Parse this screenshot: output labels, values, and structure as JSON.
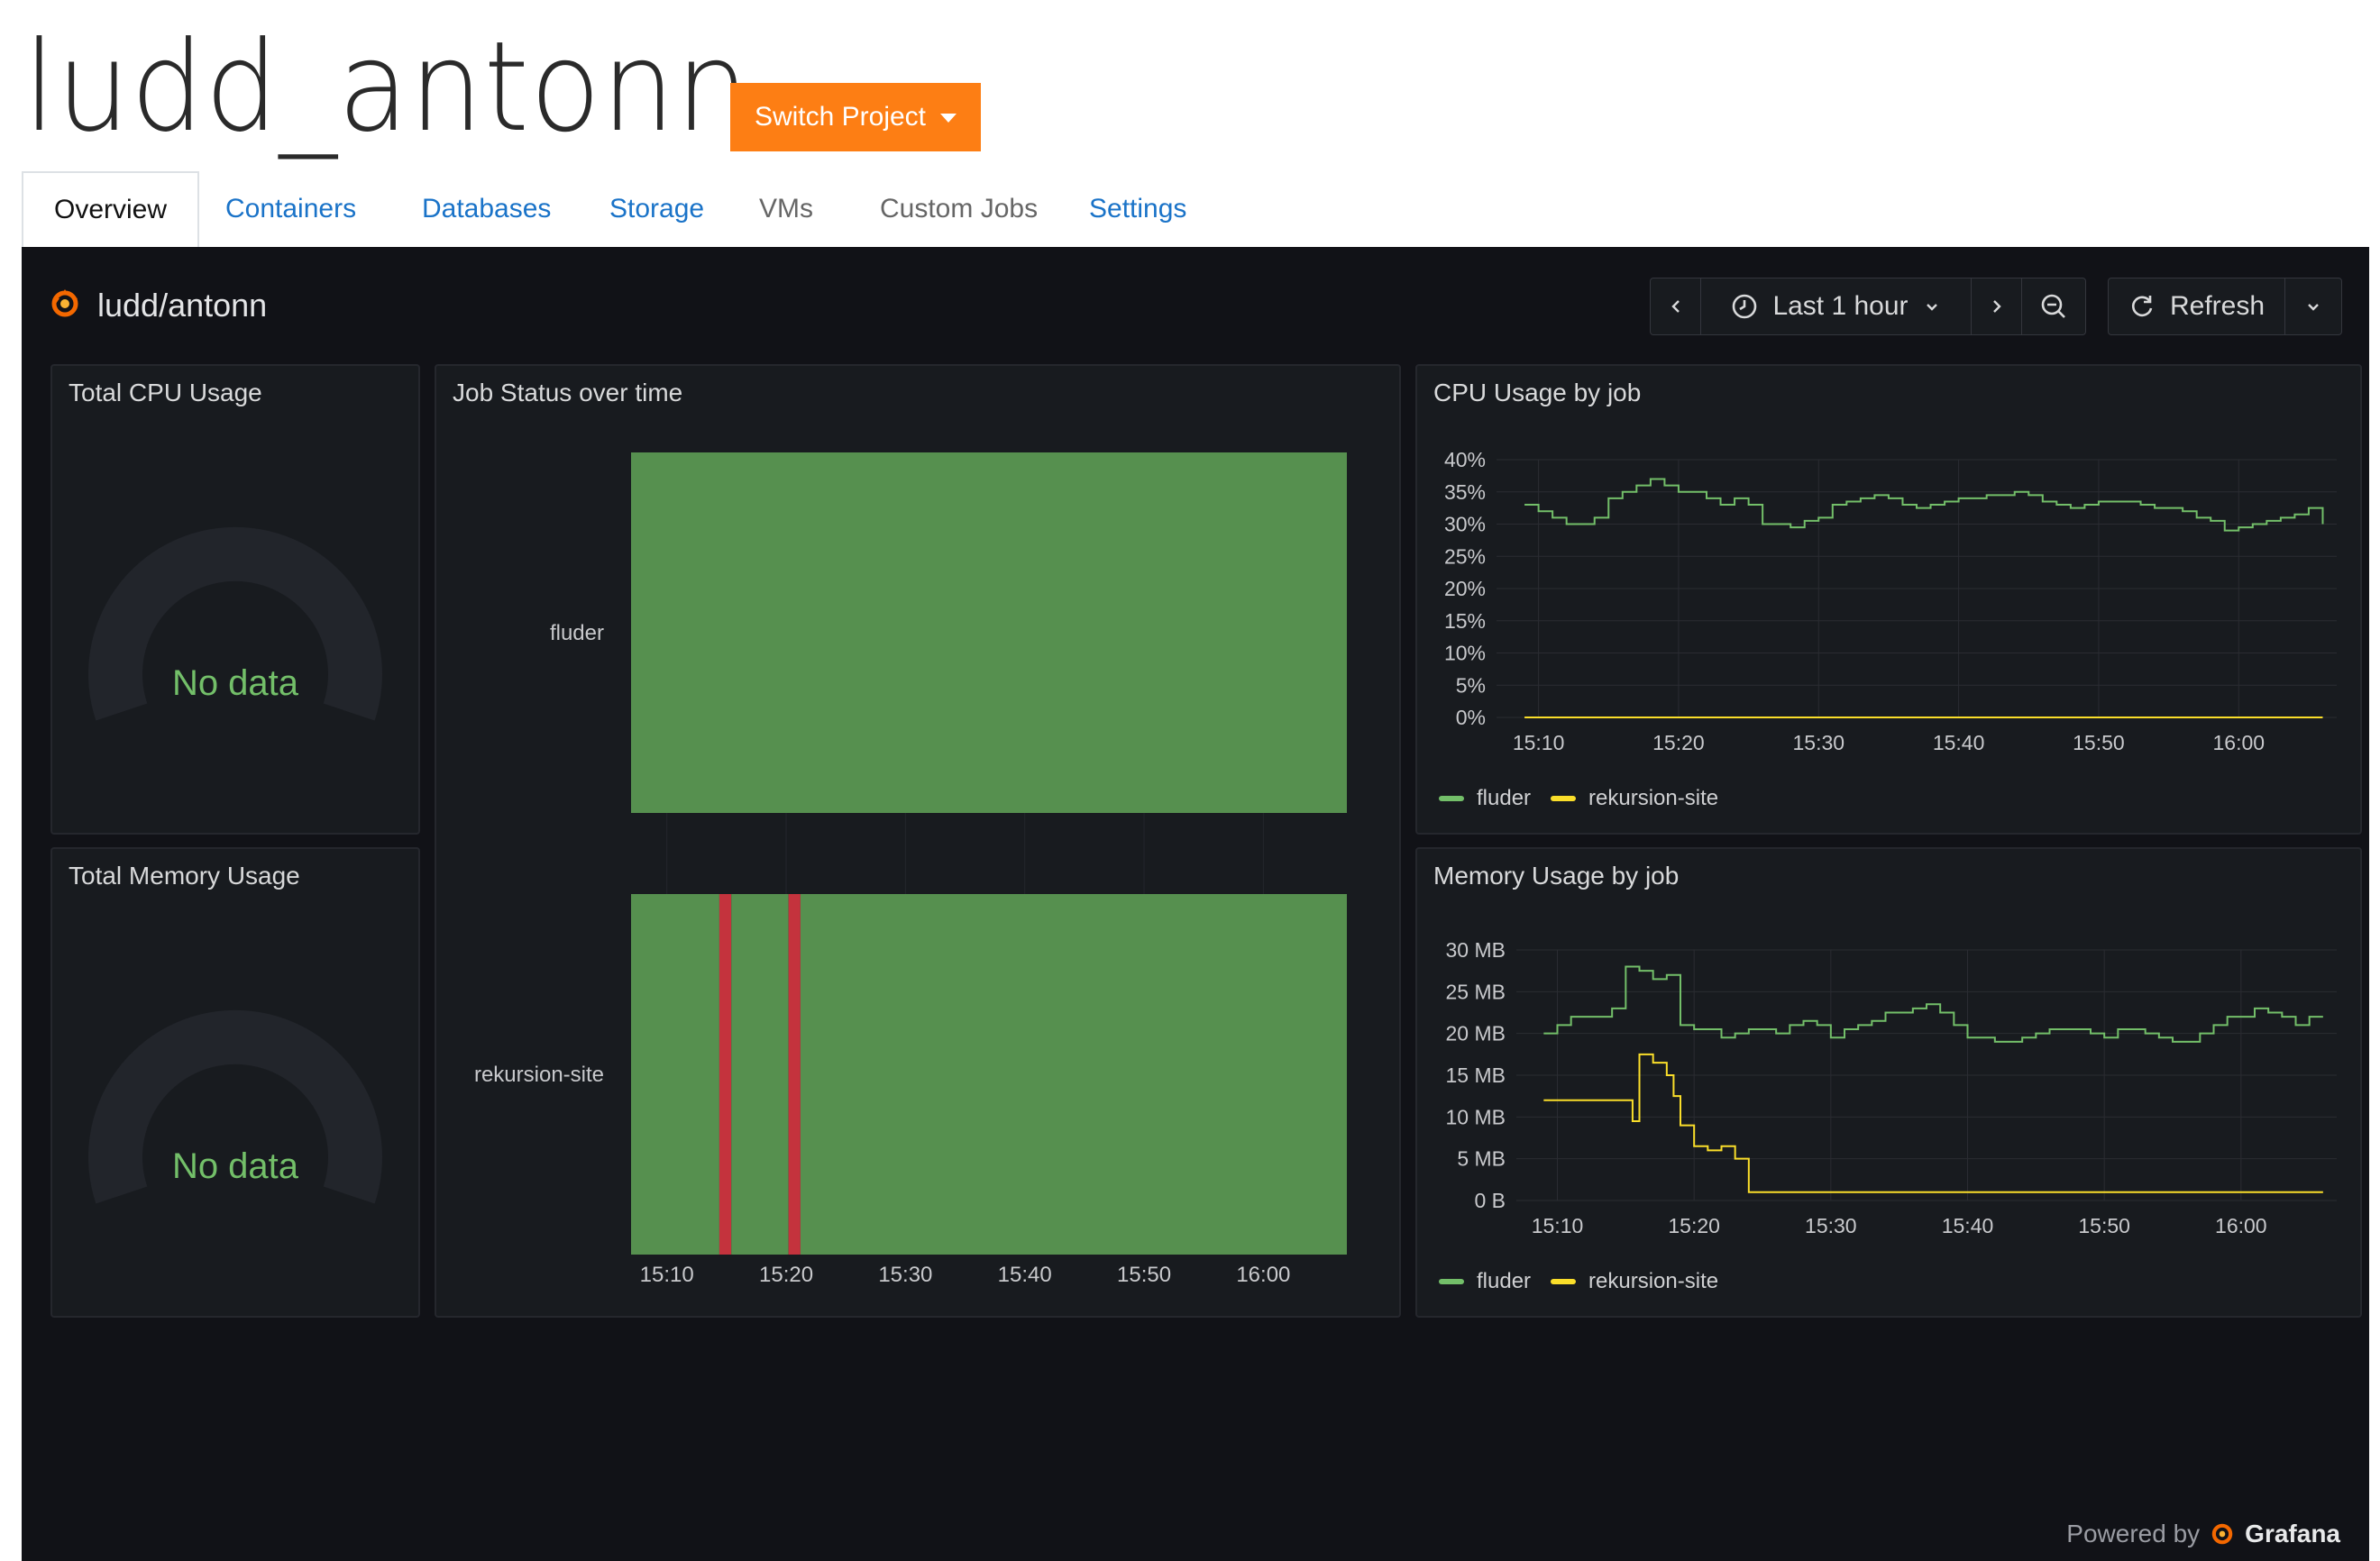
{
  "header": {
    "project_name": "ludd_antonn",
    "switch_label": "Switch Project"
  },
  "tabs": [
    {
      "label": "Overview",
      "active": true
    },
    {
      "label": "Containers"
    },
    {
      "label": "Databases"
    },
    {
      "label": "Storage"
    },
    {
      "label": "VMs"
    },
    {
      "label": "Custom Jobs"
    },
    {
      "label": "Settings"
    }
  ],
  "dashboard": {
    "title": "ludd/antonn",
    "time_range": "Last 1 hour",
    "refresh_label": "Refresh",
    "powered_prefix": "Powered by",
    "powered_brand": "Grafana",
    "icons": [
      "grafana-logo-icon",
      "chevron-left-icon",
      "clock-icon",
      "chevron-down-icon",
      "chevron-right-icon",
      "zoom-out-icon",
      "refresh-icon"
    ]
  },
  "colors": {
    "accent": "#fd7e14",
    "fluder": "#73bf69",
    "rekursion_site": "#fade2a",
    "status_ok": "#56904f",
    "status_fail": "#c4333d",
    "no_data": "#73bf69"
  },
  "panels": {
    "cpu_total": {
      "title": "Total CPU Usage",
      "value_text": "No data"
    },
    "mem_total": {
      "title": "Total Memory Usage",
      "value_text": "No data"
    },
    "job_status": {
      "title": "Job Status over time"
    },
    "cpu_by_job": {
      "title": "CPU Usage by job"
    },
    "mem_by_job": {
      "title": "Memory Usage by job"
    }
  },
  "chart_data": [
    {
      "type": "state-timeline",
      "title": "Job Status over time",
      "rows": [
        "fluder",
        "rekursion-site"
      ],
      "x_ticks": [
        "15:10",
        "15:20",
        "15:30",
        "15:40",
        "15:50",
        "16:00"
      ],
      "x_range": [
        "15:07",
        "16:07"
      ],
      "states": {
        "fluder": [
          {
            "from": "15:07",
            "to": "16:07",
            "state": "ok"
          }
        ],
        "rekursion-site": [
          {
            "from": "15:07",
            "to": "15:14.4",
            "state": "ok"
          },
          {
            "from": "15:14.4",
            "to": "15:15.4",
            "state": "fail"
          },
          {
            "from": "15:15.4",
            "to": "15:20.2",
            "state": "ok"
          },
          {
            "from": "15:20.2",
            "to": "15:21.2",
            "state": "fail"
          },
          {
            "from": "15:21.2",
            "to": "16:07",
            "state": "ok"
          }
        ]
      }
    },
    {
      "type": "line",
      "title": "CPU Usage by job",
      "y_ticks": [
        "0%",
        "5%",
        "10%",
        "15%",
        "20%",
        "25%",
        "30%",
        "35%",
        "40%"
      ],
      "ylim": [
        0,
        40
      ],
      "x_ticks": [
        "15:10",
        "15:20",
        "15:30",
        "15:40",
        "15:50",
        "16:00"
      ],
      "x_range": [
        -2,
        58
      ],
      "legend": "bottom-left",
      "series": [
        {
          "name": "fluder",
          "color": "#73bf69",
          "x": [
            0,
            1,
            2,
            3,
            4,
            5,
            6,
            7,
            8,
            9,
            10,
            11,
            12,
            13,
            14,
            15,
            16,
            17,
            18,
            19,
            20,
            21,
            22,
            23,
            24,
            25,
            26,
            27,
            28,
            29,
            30,
            31,
            32,
            33,
            34,
            35,
            36,
            37,
            38,
            39,
            40,
            41,
            42,
            43,
            44,
            45,
            46,
            47,
            48,
            49,
            50,
            51,
            52,
            53,
            54,
            55,
            56,
            57
          ],
          "y": [
            33,
            32,
            31,
            30,
            30,
            31,
            34,
            35,
            36,
            37,
            36,
            35,
            35,
            34,
            33,
            34,
            33,
            30,
            30,
            29.5,
            30.5,
            31,
            33,
            33.5,
            34,
            34.5,
            34,
            33,
            32.5,
            33,
            33.5,
            34,
            34,
            34.5,
            34.5,
            35,
            34.5,
            33.5,
            33,
            32.5,
            33,
            33.5,
            33.5,
            33.5,
            33,
            32.5,
            32.5,
            32,
            31,
            30.5,
            29,
            29.5,
            30,
            30.5,
            31,
            31.5,
            32.5,
            30
          ]
        },
        {
          "name": "rekursion-site",
          "color": "#fade2a",
          "x": [
            0,
            57
          ],
          "y": [
            0,
            0
          ]
        }
      ]
    },
    {
      "type": "line",
      "title": "Memory Usage by job",
      "y_ticks": [
        "0 B",
        "5 MB",
        "10 MB",
        "15 MB",
        "20 MB",
        "25 MB",
        "30 MB"
      ],
      "ylim": [
        0,
        30
      ],
      "x_ticks": [
        "15:10",
        "15:20",
        "15:30",
        "15:40",
        "15:50",
        "16:00"
      ],
      "x_range": [
        -2,
        58
      ],
      "legend": "bottom-left",
      "series": [
        {
          "name": "fluder",
          "color": "#73bf69",
          "x": [
            0,
            1,
            2,
            3,
            4,
            5,
            6,
            7,
            8,
            9,
            10,
            11,
            12,
            13,
            14,
            15,
            16,
            17,
            18,
            19,
            20,
            21,
            22,
            23,
            24,
            25,
            26,
            27,
            28,
            29,
            30,
            31,
            32,
            33,
            34,
            35,
            36,
            37,
            38,
            39,
            40,
            41,
            42,
            43,
            44,
            45,
            46,
            47,
            48,
            49,
            50,
            51,
            52,
            53,
            54,
            55,
            56,
            57
          ],
          "y": [
            20,
            21,
            22,
            22,
            22,
            23,
            28,
            27.5,
            26.5,
            27,
            21,
            20.5,
            20.5,
            19.5,
            20,
            20.5,
            20.5,
            20,
            21,
            21.5,
            21,
            19.5,
            20.5,
            21,
            21.5,
            22.5,
            22.5,
            23,
            23.5,
            22.5,
            21,
            19.5,
            19.5,
            19,
            19,
            19.5,
            20,
            20.5,
            20.5,
            20.5,
            20,
            19.5,
            20.5,
            20.5,
            20,
            19.5,
            19,
            19,
            20,
            21,
            22,
            22,
            23,
            22.5,
            22,
            21,
            22,
            22
          ]
        },
        {
          "name": "rekursion-site",
          "color": "#fade2a",
          "x": [
            0,
            1,
            2,
            3,
            4,
            5,
            6,
            6.5,
            7,
            8,
            9,
            9.5,
            10,
            11,
            12,
            13,
            14,
            15,
            16,
            17,
            18,
            19,
            20,
            25,
            30,
            35,
            40,
            45,
            50,
            55,
            57
          ],
          "y": [
            12,
            12,
            12,
            12,
            12,
            12,
            12,
            9.5,
            17.5,
            16.5,
            15,
            12.5,
            9,
            6.5,
            6,
            6.5,
            5,
            1,
            1,
            1,
            1,
            1,
            1,
            1,
            1,
            1,
            1,
            1,
            1,
            1,
            1
          ]
        }
      ]
    }
  ]
}
